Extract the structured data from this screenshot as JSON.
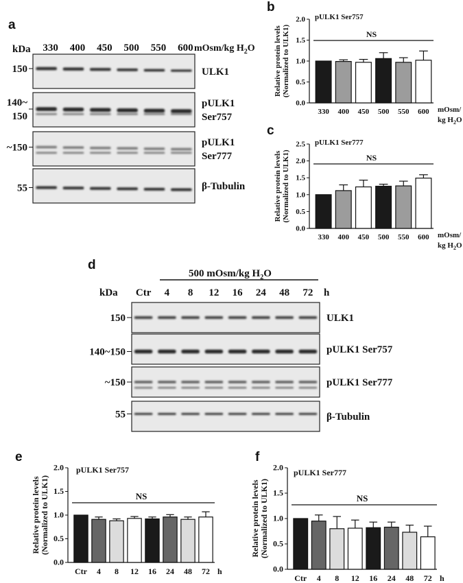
{
  "panels": {
    "a": "a",
    "b": "b",
    "c": "c",
    "d": "d",
    "e": "e",
    "f": "f"
  },
  "blot_a": {
    "kda_label": "kDa",
    "unit_label": "mOsm/kg H",
    "unit_sub": "2",
    "unit_tail": "O",
    "lanes": [
      "330",
      "400",
      "450",
      "500",
      "550",
      "600"
    ],
    "rows": [
      {
        "mw": "150",
        "name": [
          "ULK1"
        ]
      },
      {
        "mw": "140~\n150",
        "name": [
          "pULK1",
          "Ser757"
        ]
      },
      {
        "mw": "~150",
        "name": [
          "pULK1",
          "Ser777"
        ]
      },
      {
        "mw": "55",
        "name": [
          "β-Tubulin"
        ]
      }
    ]
  },
  "blot_d": {
    "kda_label": "kDa",
    "header": "500 mOsm/kg H",
    "header_sub": "2",
    "header_tail": "O",
    "lanes": [
      "Ctr",
      "4",
      "8",
      "12",
      "16",
      "24",
      "48",
      "72"
    ],
    "hour_unit": "h",
    "rows": [
      {
        "mw": "150",
        "name": "ULK1"
      },
      {
        "mw": "140~150",
        "name": "pULK1 Ser757"
      },
      {
        "mw": "~150",
        "name": "pULK1 Ser777"
      },
      {
        "mw": "55",
        "name": "β-Tubulin"
      }
    ]
  },
  "chart_data": [
    {
      "panel": "b",
      "type": "bar",
      "title": "pULK1 Ser757",
      "ylabel": [
        "Relative protein levels",
        "(Normalized to ULK1)"
      ],
      "categories": [
        "330",
        "400",
        "450",
        "500",
        "550",
        "600"
      ],
      "xunit": [
        "mOsm/",
        "kg H",
        "2",
        "O"
      ],
      "values": [
        1.0,
        0.99,
        0.97,
        1.06,
        0.97,
        1.02
      ],
      "errors": [
        0.0,
        0.04,
        0.07,
        0.14,
        0.11,
        0.22
      ],
      "fills": [
        "#1a1a1a",
        "#9c9c9c",
        "#ffffff",
        "#1a1a1a",
        "#9c9c9c",
        "#ffffff"
      ],
      "ylim": [
        0,
        2.0
      ],
      "yticks": [
        "0.0",
        "0.5",
        "1.0",
        "1.5",
        "2.0"
      ],
      "annotation": "NS"
    },
    {
      "panel": "c",
      "type": "bar",
      "title": "pULK1 Ser777",
      "ylabel": [
        "Relative protein levels",
        "(Normalized to ULK1)"
      ],
      "categories": [
        "330",
        "400",
        "450",
        "500",
        "550",
        "600"
      ],
      "xunit": [
        "mOsm/",
        "kg H",
        "2",
        "O"
      ],
      "values": [
        1.0,
        1.12,
        1.23,
        1.25,
        1.26,
        1.49
      ],
      "errors": [
        0.0,
        0.17,
        0.2,
        0.06,
        0.14,
        0.1
      ],
      "fills": [
        "#1a1a1a",
        "#9c9c9c",
        "#ffffff",
        "#1a1a1a",
        "#9c9c9c",
        "#ffffff"
      ],
      "ylim": [
        0,
        2.5
      ],
      "yticks": [
        "0.0",
        "0.5",
        "1.0",
        "1.5",
        "2.0",
        "2.5"
      ],
      "annotation": "NS"
    },
    {
      "panel": "e",
      "type": "bar",
      "title": "pULK1 Ser757",
      "ylabel": [
        "Relative protein levels",
        "(Normalized to ULK1)"
      ],
      "categories": [
        "Ctr",
        "4",
        "8",
        "12",
        "16",
        "24",
        "48",
        "72"
      ],
      "xunit": [
        "h"
      ],
      "values": [
        1.0,
        0.91,
        0.88,
        0.93,
        0.92,
        0.96,
        0.91,
        0.96
      ],
      "errors": [
        0.0,
        0.05,
        0.04,
        0.04,
        0.04,
        0.05,
        0.05,
        0.11
      ],
      "fills": [
        "#1a1a1a",
        "#666666",
        "#dcdcdc",
        "#ffffff",
        "#1a1a1a",
        "#666666",
        "#dcdcdc",
        "#ffffff"
      ],
      "ylim": [
        0,
        2.0
      ],
      "yticks": [
        "0.0",
        "0.5",
        "1.0",
        "1.5",
        "2.0"
      ],
      "annotation": "NS"
    },
    {
      "panel": "f",
      "type": "bar",
      "title": "pULK1 Ser777",
      "ylabel": [
        "Relative protein levels",
        "(Normalized to ULK1)"
      ],
      "categories": [
        "Ctr",
        "4",
        "8",
        "12",
        "16",
        "24",
        "48",
        "72"
      ],
      "xunit": [
        "h"
      ],
      "values": [
        1.0,
        0.95,
        0.8,
        0.81,
        0.82,
        0.83,
        0.73,
        0.64
      ],
      "errors": [
        0.0,
        0.12,
        0.24,
        0.16,
        0.11,
        0.1,
        0.14,
        0.21
      ],
      "fills": [
        "#1a1a1a",
        "#666666",
        "#dcdcdc",
        "#ffffff",
        "#1a1a1a",
        "#666666",
        "#dcdcdc",
        "#ffffff"
      ],
      "ylim": [
        0,
        2.0
      ],
      "yticks": [
        "0.0",
        "0.5",
        "1.0",
        "1.5",
        "2.0"
      ],
      "annotation": "NS"
    }
  ]
}
